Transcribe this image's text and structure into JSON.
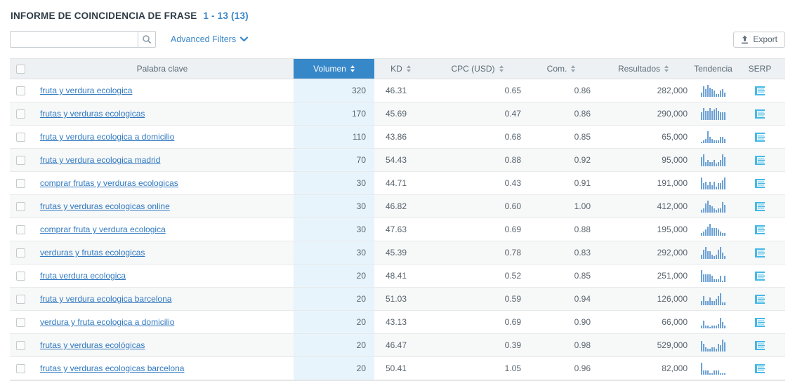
{
  "page": {
    "title": "INFORME DE COINCIDENCIA DE FRASE",
    "range": "1 - 13 (13)"
  },
  "toolbar": {
    "search_value": "",
    "search_placeholder": "",
    "advanced_filters_label": "Advanced Filters",
    "export_label": "Export"
  },
  "table": {
    "header": {
      "keyword": "Palabra clave",
      "volume": "Volumen",
      "kd": "KD",
      "cpc": "CPC (USD)",
      "com": "Com.",
      "results": "Resultados",
      "trend": "Tendencia",
      "serp": "SERP"
    },
    "sorted_column": "volume",
    "rows": [
      {
        "keyword": "fruta y verdura ecologica",
        "volume": "320",
        "kd": "46.31",
        "cpc": "0.65",
        "com": "0.86",
        "results": "282,000",
        "trend": [
          3,
          7,
          5,
          8,
          6,
          5,
          4,
          2,
          2,
          4,
          5,
          3
        ]
      },
      {
        "keyword": "frutas y verduras ecologicas",
        "volume": "170",
        "kd": "45.69",
        "cpc": "0.47",
        "com": "0.86",
        "results": "290,000",
        "trend": [
          5,
          8,
          6,
          6,
          8,
          6,
          7,
          8,
          6,
          5,
          5,
          5
        ]
      },
      {
        "keyword": "fruta y verdura ecologica a domicilio",
        "volume": "110",
        "kd": "43.86",
        "cpc": "0.68",
        "com": "0.85",
        "results": "65,000",
        "trend": [
          1,
          2,
          3,
          8,
          4,
          3,
          2,
          2,
          2,
          4,
          4,
          3
        ]
      },
      {
        "keyword": "fruta y verdura ecologica madrid",
        "volume": "70",
        "kd": "54.43",
        "cpc": "0.88",
        "com": "0.92",
        "results": "95,000",
        "trend": [
          6,
          8,
          3,
          4,
          3,
          3,
          4,
          2,
          3,
          4,
          8,
          6
        ]
      },
      {
        "keyword": "comprar frutas y verduras ecologicas",
        "volume": "30",
        "kd": "44.71",
        "cpc": "0.43",
        "com": "0.91",
        "results": "191,000",
        "trend": [
          8,
          4,
          5,
          3,
          5,
          3,
          5,
          2,
          4,
          4,
          6,
          8
        ]
      },
      {
        "keyword": "frutas y verduras ecologicas online",
        "volume": "30",
        "kd": "46.82",
        "cpc": "0.60",
        "com": "1.00",
        "results": "412,000",
        "trend": [
          2,
          3,
          6,
          8,
          5,
          4,
          3,
          2,
          3,
          3,
          7,
          5
        ]
      },
      {
        "keyword": "comprar fruta y verdura ecologica",
        "volume": "30",
        "kd": "47.63",
        "cpc": "0.69",
        "com": "0.88",
        "results": "195,000",
        "trend": [
          2,
          3,
          4,
          6,
          8,
          5,
          5,
          5,
          4,
          3,
          2,
          2
        ]
      },
      {
        "keyword": "verduras y frutas ecologicas",
        "volume": "30",
        "kd": "45.39",
        "cpc": "0.78",
        "com": "0.83",
        "results": "292,000",
        "trend": [
          3,
          6,
          8,
          5,
          5,
          3,
          2,
          3,
          6,
          8,
          4,
          2
        ]
      },
      {
        "keyword": "fruta verdura ecologica",
        "volume": "20",
        "kd": "48.41",
        "cpc": "0.52",
        "com": "0.85",
        "results": "251,000",
        "trend": [
          8,
          5,
          5,
          5,
          5,
          4,
          2,
          2,
          2,
          4,
          1,
          4
        ]
      },
      {
        "keyword": "fruta y verdura ecologica barcelona",
        "volume": "20",
        "kd": "51.03",
        "cpc": "0.59",
        "com": "0.94",
        "results": "126,000",
        "trend": [
          3,
          6,
          3,
          3,
          5,
          3,
          3,
          4,
          6,
          8,
          2,
          2
        ]
      },
      {
        "keyword": "verdura y fruta ecologica a domicilio",
        "volume": "20",
        "kd": "43.13",
        "cpc": "0.69",
        "com": "0.90",
        "results": "66,000",
        "trend": [
          2,
          5,
          2,
          2,
          1,
          2,
          2,
          2,
          3,
          7,
          4,
          2
        ]
      },
      {
        "keyword": "frutas y verduras ecológicas",
        "volume": "20",
        "kd": "46.47",
        "cpc": "0.39",
        "com": "0.98",
        "results": "529,000",
        "trend": [
          7,
          5,
          3,
          2,
          2,
          3,
          3,
          2,
          5,
          4,
          8,
          6
        ]
      },
      {
        "keyword": "frutas y verduras ecologicas barcelona",
        "volume": "20",
        "kd": "50.41",
        "cpc": "1.05",
        "com": "0.96",
        "results": "82,000",
        "trend": [
          8,
          3,
          3,
          3,
          1,
          1,
          3,
          3,
          3,
          1,
          1,
          1
        ]
      }
    ]
  },
  "colors": {
    "accent_blue": "#3788c9",
    "link_blue": "#3079c0",
    "volume_column_bg": "#e8f4fb",
    "trend_bar": "#6ba1d4",
    "serp_icon_cyan": "#45b9e6",
    "header_bg": "#edf1f4"
  }
}
